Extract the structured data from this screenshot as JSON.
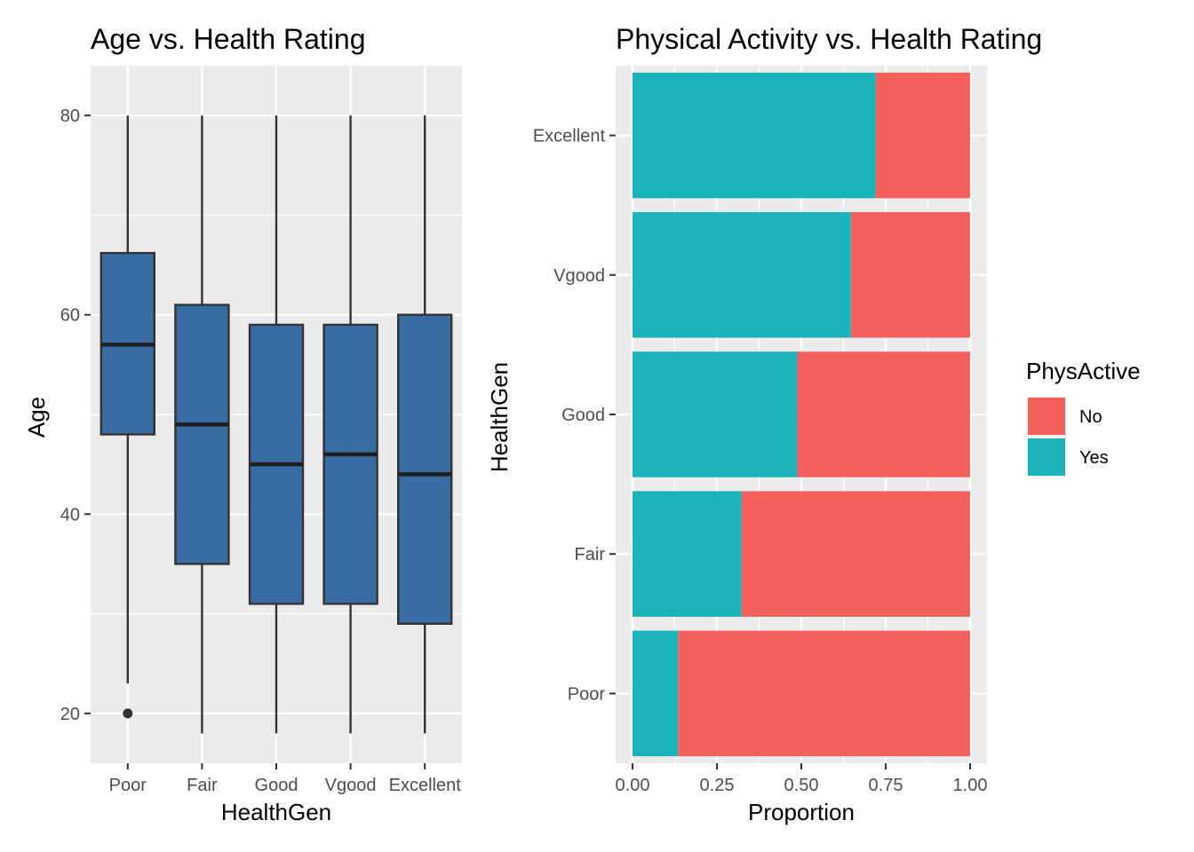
{
  "chart_data": [
    {
      "type": "boxplot",
      "title": "Age vs. Health Rating",
      "xlabel": "HealthGen",
      "ylabel": "Age",
      "ylim": [
        15,
        85
      ],
      "yticks": [
        20,
        40,
        60,
        80
      ],
      "grid": true,
      "box_color": "#3A6CA4",
      "categories": [
        "Poor",
        "Fair",
        "Good",
        "Vgood",
        "Excellent"
      ],
      "boxes": [
        {
          "category": "Poor",
          "min": 23,
          "q1": 48,
          "median": 57,
          "q3": 66.2,
          "max": 80,
          "outliers": [
            20
          ]
        },
        {
          "category": "Fair",
          "min": 18,
          "q1": 35,
          "median": 49,
          "q3": 61,
          "max": 80,
          "outliers": []
        },
        {
          "category": "Good",
          "min": 18,
          "q1": 31,
          "median": 45,
          "q3": 59,
          "max": 80,
          "outliers": []
        },
        {
          "category": "Vgood",
          "min": 18,
          "q1": 31,
          "median": 46,
          "q3": 59,
          "max": 80,
          "outliers": []
        },
        {
          "category": "Excellent",
          "min": 18,
          "q1": 29,
          "median": 44,
          "q3": 60,
          "max": 80,
          "outliers": []
        }
      ]
    },
    {
      "type": "bar",
      "orientation": "horizontal",
      "stacked": true,
      "title": "Physical Activity vs. Health Rating",
      "xlabel": "Proportion",
      "ylabel": "HealthGen",
      "xlim": [
        0,
        1
      ],
      "xtick_labels": [
        "0.00",
        "0.25",
        "0.50",
        "0.75",
        "1.00"
      ],
      "categories": [
        "Poor",
        "Fair",
        "Good",
        "Vgood",
        "Excellent"
      ],
      "series": [
        {
          "name": "Yes",
          "color": "#19B3B8",
          "values": [
            0.135,
            0.323,
            0.488,
            0.647,
            0.72
          ]
        },
        {
          "name": "No",
          "color": "#F4605C",
          "values": [
            0.865,
            0.677,
            0.512,
            0.353,
            0.28
          ]
        }
      ],
      "legend": {
        "title": "PhysActive",
        "position": "right",
        "entries": [
          {
            "label": "No",
            "color": "#F4605C"
          },
          {
            "label": "Yes",
            "color": "#19B3B8"
          }
        ]
      },
      "grid": true
    }
  ]
}
